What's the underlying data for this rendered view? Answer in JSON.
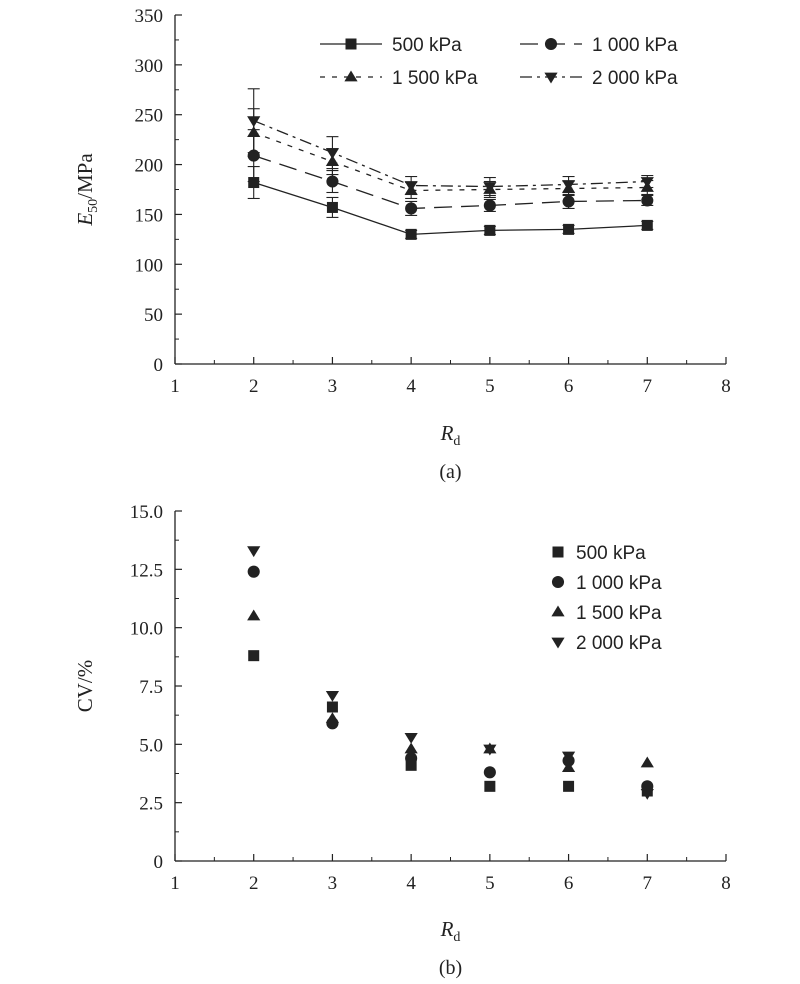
{
  "chart_data": [
    {
      "type": "line",
      "panel_label": "(a)",
      "x_label": {
        "main": "R",
        "sub": "d"
      },
      "y_label": {
        "main": "E",
        "sub": "50",
        "unit": "/MPa"
      },
      "xlim": [
        1,
        8
      ],
      "ylim": [
        0,
        350
      ],
      "x_ticks": [
        "1",
        "2",
        "3",
        "4",
        "5",
        "6",
        "7",
        "8"
      ],
      "y_ticks": [
        "0",
        "50",
        "100",
        "150",
        "200",
        "250",
        "300",
        "350"
      ],
      "grid": false,
      "legend_position": "top-right",
      "x": [
        2,
        3,
        4,
        5,
        6,
        7
      ],
      "series": [
        {
          "name": "500 kPa",
          "marker": "square",
          "dash": "solid",
          "values": [
            182,
            157,
            130,
            134,
            135,
            139
          ],
          "errors": [
            16,
            10,
            4,
            4,
            4,
            4
          ]
        },
        {
          "name": "1 000 kPa",
          "marker": "circle",
          "dash": "longdash",
          "values": [
            209,
            183,
            156,
            159,
            163,
            164
          ],
          "errors": [
            26,
            11,
            7,
            6,
            7,
            5
          ]
        },
        {
          "name": "1 500 kPa",
          "marker": "triangle-up",
          "dash": "shortdash",
          "values": [
            232,
            203,
            174,
            175,
            176,
            177
          ],
          "errors": [
            24,
            13,
            8,
            8,
            7,
            7
          ]
        },
        {
          "name": "2 000 kPa",
          "marker": "triangle-down",
          "dash": "dashdot",
          "values": [
            244,
            212,
            179,
            178,
            180,
            183
          ],
          "errors": [
            32,
            16,
            9,
            9,
            8,
            6
          ]
        }
      ]
    },
    {
      "type": "scatter",
      "panel_label": "(b)",
      "x_label": {
        "main": "R",
        "sub": "d"
      },
      "y_label": {
        "main": "CV/%"
      },
      "xlim": [
        1,
        8
      ],
      "ylim": [
        0,
        15
      ],
      "x_ticks": [
        "1",
        "2",
        "3",
        "4",
        "5",
        "6",
        "7",
        "8"
      ],
      "y_ticks": [
        "0",
        "2.5",
        "5.0",
        "7.5",
        "10.0",
        "12.5",
        "15.0"
      ],
      "grid": false,
      "legend_position": "top-right",
      "x": [
        2,
        3,
        4,
        5,
        6,
        7
      ],
      "series": [
        {
          "name": "500 kPa",
          "marker": "square",
          "values": [
            8.8,
            6.6,
            4.1,
            3.2,
            3.2,
            3.0
          ]
        },
        {
          "name": "1 000 kPa",
          "marker": "circle",
          "values": [
            12.4,
            5.9,
            4.4,
            3.8,
            4.3,
            3.2
          ]
        },
        {
          "name": "1 500 kPa",
          "marker": "triangle-up",
          "values": [
            10.5,
            6.1,
            4.8,
            4.8,
            4.0,
            4.2
          ]
        },
        {
          "name": "2 000 kPa",
          "marker": "triangle-down",
          "values": [
            13.3,
            7.1,
            5.3,
            4.8,
            4.5,
            2.9
          ]
        }
      ]
    }
  ]
}
